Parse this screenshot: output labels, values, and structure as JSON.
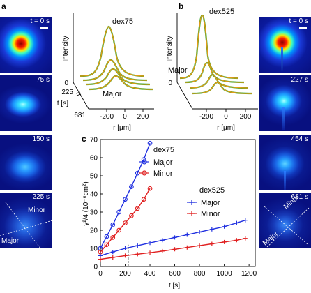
{
  "panel_labels": {
    "a": "a",
    "b": "b",
    "c": "c"
  },
  "left_tiles": [
    {
      "time": "t = 0 s"
    },
    {
      "time": "75 s"
    },
    {
      "time": "150 s"
    },
    {
      "time": "225 s",
      "minor": "Minor",
      "major": "Major"
    }
  ],
  "right_tiles": [
    {
      "time": "t = 0 s"
    },
    {
      "time": "227 s"
    },
    {
      "time": "454 s"
    },
    {
      "time": "681 s",
      "minor": "Minor",
      "major": "Major"
    }
  ],
  "panel_a_plot": {
    "title": "dex75",
    "ylabel": "Intensity",
    "zero": "0",
    "xlabel": "r [μm]",
    "xticks": [
      "-200",
      "0",
      "200"
    ],
    "t_axis_label": "t [s]",
    "t_ticks": [
      "225",
      "681"
    ],
    "annotation": "Major"
  },
  "panel_b_plot": {
    "title": "dex525",
    "ylabel": "Intensity",
    "zero": "0",
    "xlabel": "r [μm]",
    "xticks": [
      "-200",
      "0",
      "200"
    ],
    "annotation": "Major"
  },
  "colors": {
    "blue": "#1f2fe0",
    "red": "#e01f1f",
    "orange": "#e39a17",
    "green": "#2aa52a"
  },
  "chart_data": {
    "type": "scatter",
    "title": "",
    "xlabel": "t [s]",
    "ylabel": "γ²/4 (10⁻⁶cm²)",
    "xlim": [
      0,
      1250
    ],
    "ylim": [
      0,
      70
    ],
    "xticks": [
      "0",
      "200",
      "400",
      "600",
      "800",
      "1000",
      "1200"
    ],
    "yticks": [
      "0",
      "10",
      "20",
      "30",
      "40",
      "50",
      "60",
      "70"
    ],
    "legend_groups": [
      {
        "title": "dex75",
        "entries": [
          "Major",
          "Minor"
        ]
      },
      {
        "title": "dex525",
        "entries": [
          "Major",
          "Minor"
        ]
      }
    ],
    "reference_line_x": 225,
    "series": [
      {
        "name": "Major",
        "group": "dex75",
        "marker": "circle",
        "color": "#1f2fe0",
        "x": [
          0,
          50,
          100,
          150,
          200,
          250,
          300,
          350,
          400
        ],
        "y": [
          10,
          16.5,
          23,
          30,
          37,
          44,
          51.5,
          59,
          68
        ]
      },
      {
        "name": "Minor",
        "group": "dex75",
        "marker": "circle",
        "color": "#e01f1f",
        "x": [
          0,
          50,
          100,
          150,
          200,
          250,
          300,
          350,
          400
        ],
        "y": [
          8,
          12,
          16,
          20,
          24,
          28,
          32,
          37,
          43
        ]
      },
      {
        "name": "Major",
        "group": "dex525",
        "marker": "plus",
        "color": "#1f2fe0",
        "x": [
          0,
          100,
          200,
          300,
          400,
          500,
          600,
          700,
          800,
          900,
          1000,
          1100,
          1170
        ],
        "y": [
          6,
          8,
          10,
          11.5,
          13,
          14.5,
          16,
          17.5,
          19,
          20.5,
          22,
          24,
          25.5
        ]
      },
      {
        "name": "Minor",
        "group": "dex525",
        "marker": "plus",
        "color": "#e01f1f",
        "x": [
          0,
          100,
          200,
          300,
          400,
          500,
          600,
          700,
          800,
          900,
          1000,
          1100,
          1170
        ],
        "y": [
          4,
          5,
          6,
          6.8,
          7.6,
          8.5,
          9.5,
          10.5,
          11.5,
          12.5,
          13.5,
          14.5,
          15.5
        ]
      }
    ]
  }
}
